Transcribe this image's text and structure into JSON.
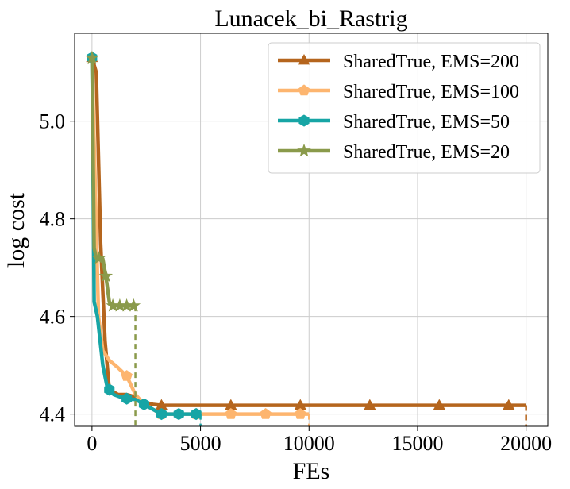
{
  "chart_data": {
    "type": "line",
    "title": "Lunacek_bi_Rastrig",
    "xlabel": "FEs",
    "ylabel": "log cost",
    "xlim": [
      -800,
      21000
    ],
    "ylim": [
      4.375,
      5.18
    ],
    "xticks": [
      0,
      5000,
      10000,
      15000,
      20000
    ],
    "xtick_labels": [
      "0",
      "5000",
      "10000",
      "15000",
      "20000"
    ],
    "yticks": [
      4.4,
      4.6,
      4.8,
      5.0
    ],
    "ytick_labels": [
      "4.4",
      "4.6",
      "4.8",
      "5.0"
    ],
    "grid": true,
    "legend_position": "top-right",
    "series": [
      {
        "name": "SharedTrue, EMS=200",
        "color": "#b5651d",
        "marker": "triangle",
        "end_x": 20000,
        "points": [
          [
            0,
            5.13
          ],
          [
            200,
            5.1
          ],
          [
            400,
            4.75
          ],
          [
            600,
            4.55
          ],
          [
            800,
            4.45
          ],
          [
            1200,
            4.44
          ],
          [
            1600,
            4.44
          ],
          [
            2000,
            4.435
          ],
          [
            2400,
            4.425
          ],
          [
            2800,
            4.42
          ],
          [
            3200,
            4.418
          ],
          [
            20000,
            4.418
          ]
        ],
        "marker_x": [
          0,
          3200,
          6400,
          9600,
          12800,
          16000,
          19200
        ]
      },
      {
        "name": "SharedTrue, EMS=100",
        "color": "#fdb56f",
        "marker": "pentagon",
        "end_x": 10000,
        "points": [
          [
            0,
            5.13
          ],
          [
            300,
            4.6
          ],
          [
            500,
            4.53
          ],
          [
            800,
            4.51
          ],
          [
            1200,
            4.495
          ],
          [
            1600,
            4.478
          ],
          [
            2000,
            4.44
          ],
          [
            2400,
            4.42
          ],
          [
            2800,
            4.41
          ],
          [
            3200,
            4.4
          ],
          [
            10000,
            4.4
          ]
        ],
        "marker_x": [
          0,
          1600,
          3200,
          4800,
          6400,
          8000,
          9600
        ]
      },
      {
        "name": "SharedTrue, EMS=50",
        "color": "#17a5a5",
        "marker": "hexagon",
        "end_x": 5000,
        "points": [
          [
            0,
            5.13
          ],
          [
            100,
            4.63
          ],
          [
            250,
            4.6
          ],
          [
            500,
            4.5
          ],
          [
            700,
            4.455
          ],
          [
            1000,
            4.44
          ],
          [
            1500,
            4.432
          ],
          [
            2000,
            4.43
          ],
          [
            2400,
            4.42
          ],
          [
            2800,
            4.41
          ],
          [
            3200,
            4.4
          ],
          [
            5000,
            4.4
          ]
        ],
        "marker_x": [
          0,
          800,
          1600,
          2400,
          3200,
          4000,
          4800
        ]
      },
      {
        "name": "SharedTrue, EMS=20",
        "color": "#8a9a4b",
        "marker": "star",
        "end_x": 2000,
        "points": [
          [
            0,
            5.13
          ],
          [
            100,
            4.74
          ],
          [
            200,
            4.72
          ],
          [
            500,
            4.718
          ],
          [
            650,
            4.68
          ],
          [
            800,
            4.63
          ],
          [
            900,
            4.622
          ],
          [
            2000,
            4.622
          ]
        ],
        "marker_x": [
          0,
          320,
          640,
          960,
          1280,
          1600,
          1920
        ]
      }
    ]
  }
}
